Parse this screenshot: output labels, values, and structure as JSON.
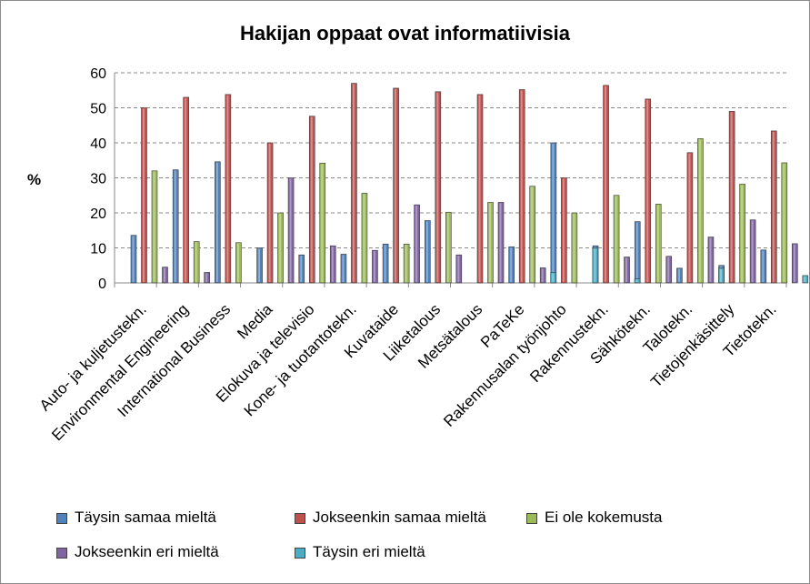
{
  "chart_data": {
    "type": "bar",
    "title": "Hakijan oppaat ovat informatiivisia",
    "ylabel": "%",
    "xlabel": "",
    "ylim": [
      0,
      60
    ],
    "yticks": [
      0,
      10,
      20,
      30,
      40,
      50,
      60
    ],
    "grid": "horizontal dashed",
    "legend_position": "bottom",
    "categories": [
      "Auto- ja kuljetustekn.",
      "Environmental Engineering",
      "International Business",
      "Media",
      "Elokuva ja televisio",
      "Kone- ja tuotantotekn.",
      "Kuvataide",
      "Liiketalous",
      "Metsätalous",
      "PaTeKe",
      "Rakennusalan työnjohto",
      "Rakennustekn.",
      "Sähkötekn.",
      "Talotekn.",
      "Tietojenkäsittely",
      "Tietotekn."
    ],
    "series": [
      {
        "name": "Täysin samaa mieltä",
        "color": "#4f81bd",
        "values": [
          13.6,
          32.3,
          34.6,
          10,
          8,
          8.2,
          11.1,
          17.8,
          0,
          10.3,
          40,
          10.6,
          17.5,
          4.2,
          5,
          9.4
        ]
      },
      {
        "name": "Jokseenkin samaa mieltä",
        "color": "#c0504d",
        "values": [
          50,
          53,
          53.8,
          40,
          47.6,
          57,
          55.6,
          54.6,
          53.8,
          55.2,
          30,
          56.4,
          52.5,
          37.2,
          49,
          43.4
        ]
      },
      {
        "name": "Ei ole kokemusta",
        "color": "#9bbb59",
        "values": [
          32,
          11.8,
          11.5,
          20,
          34.2,
          25.6,
          11.1,
          20.2,
          23,
          27.6,
          20,
          25,
          22.5,
          41.2,
          28.2,
          34.3
        ]
      },
      {
        "name": "Jokseenkin eri mieltä",
        "color": "#8064a2",
        "values": [
          4.5,
          3,
          0,
          30,
          10.6,
          9.3,
          22.3,
          8,
          23,
          4.3,
          0,
          7.4,
          7.6,
          13.1,
          18,
          11.2
        ]
      },
      {
        "name": "Täysin eri mieltä",
        "color": "#4bacc6",
        "values": [
          0,
          0,
          0,
          0,
          0,
          0,
          0,
          0,
          0,
          3,
          10,
          1.2,
          0,
          4.2,
          0,
          2.1
        ]
      }
    ]
  }
}
